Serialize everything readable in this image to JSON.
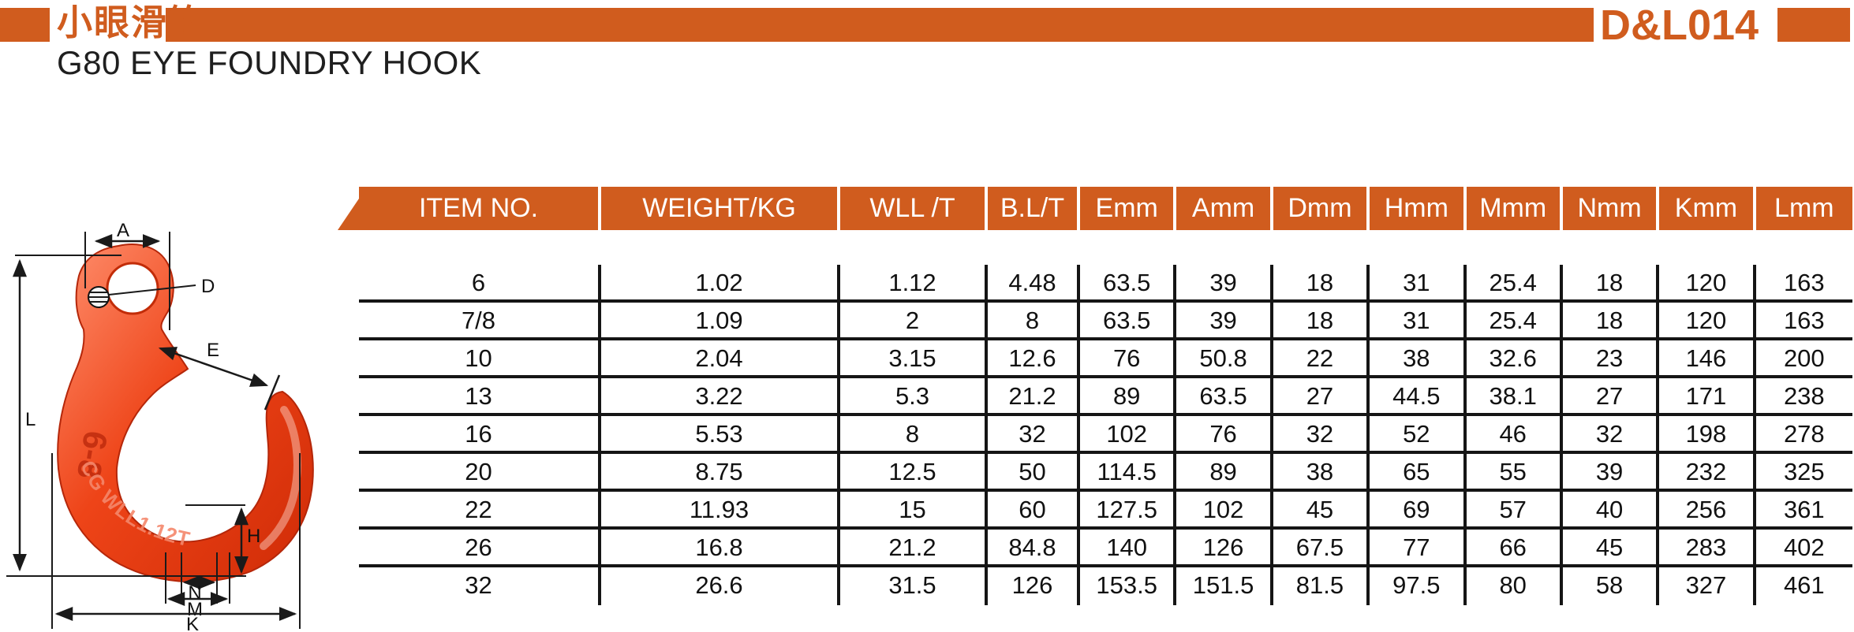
{
  "page": {
    "product_name_zh": "小眼滑钩",
    "product_name_en": "G80 EYE FOUNDRY HOOK",
    "model_code": "D&L014"
  },
  "colors": {
    "accent_orange": "#D05C1E",
    "hook_red": "#E8410F",
    "line_black": "#1A1A1A"
  },
  "diagram": {
    "labels": {
      "A": "A",
      "D": "D",
      "E": "E",
      "L": "L",
      "H": "H",
      "N": "N",
      "M": "M",
      "K": "K"
    },
    "markings": {
      "size_mark": "6-8",
      "wll_mark": "CG WLL1.12T"
    }
  },
  "table": {
    "columns": [
      "ITEM NO.",
      "WEIGHT/KG",
      "WLL /T",
      "B.L/T",
      "Emm",
      "Amm",
      "Dmm",
      "Hmm",
      "Mmm",
      "Nmm",
      "Kmm",
      "Lmm"
    ],
    "rows": [
      [
        "6",
        "1.02",
        "1.12",
        "4.48",
        "63.5",
        "39",
        "18",
        "31",
        "25.4",
        "18",
        "120",
        "163"
      ],
      [
        "7/8",
        "1.09",
        "2",
        "8",
        "63.5",
        "39",
        "18",
        "31",
        "25.4",
        "18",
        "120",
        "163"
      ],
      [
        "10",
        "2.04",
        "3.15",
        "12.6",
        "76",
        "50.8",
        "22",
        "38",
        "32.6",
        "23",
        "146",
        "200"
      ],
      [
        "13",
        "3.22",
        "5.3",
        "21.2",
        "89",
        "63.5",
        "27",
        "44.5",
        "38.1",
        "27",
        "171",
        "238"
      ],
      [
        "16",
        "5.53",
        "8",
        "32",
        "102",
        "76",
        "32",
        "52",
        "46",
        "32",
        "198",
        "278"
      ],
      [
        "20",
        "8.75",
        "12.5",
        "50",
        "114.5",
        "89",
        "38",
        "65",
        "55",
        "39",
        "232",
        "325"
      ],
      [
        "22",
        "11.93",
        "15",
        "60",
        "127.5",
        "102",
        "45",
        "69",
        "57",
        "40",
        "256",
        "361"
      ],
      [
        "26",
        "16.8",
        "21.2",
        "84.8",
        "140",
        "126",
        "67.5",
        "77",
        "66",
        "45",
        "283",
        "402"
      ],
      [
        "32",
        "26.6",
        "31.5",
        "126",
        "153.5",
        "151.5",
        "81.5",
        "97.5",
        "80",
        "58",
        "327",
        "461"
      ]
    ]
  }
}
